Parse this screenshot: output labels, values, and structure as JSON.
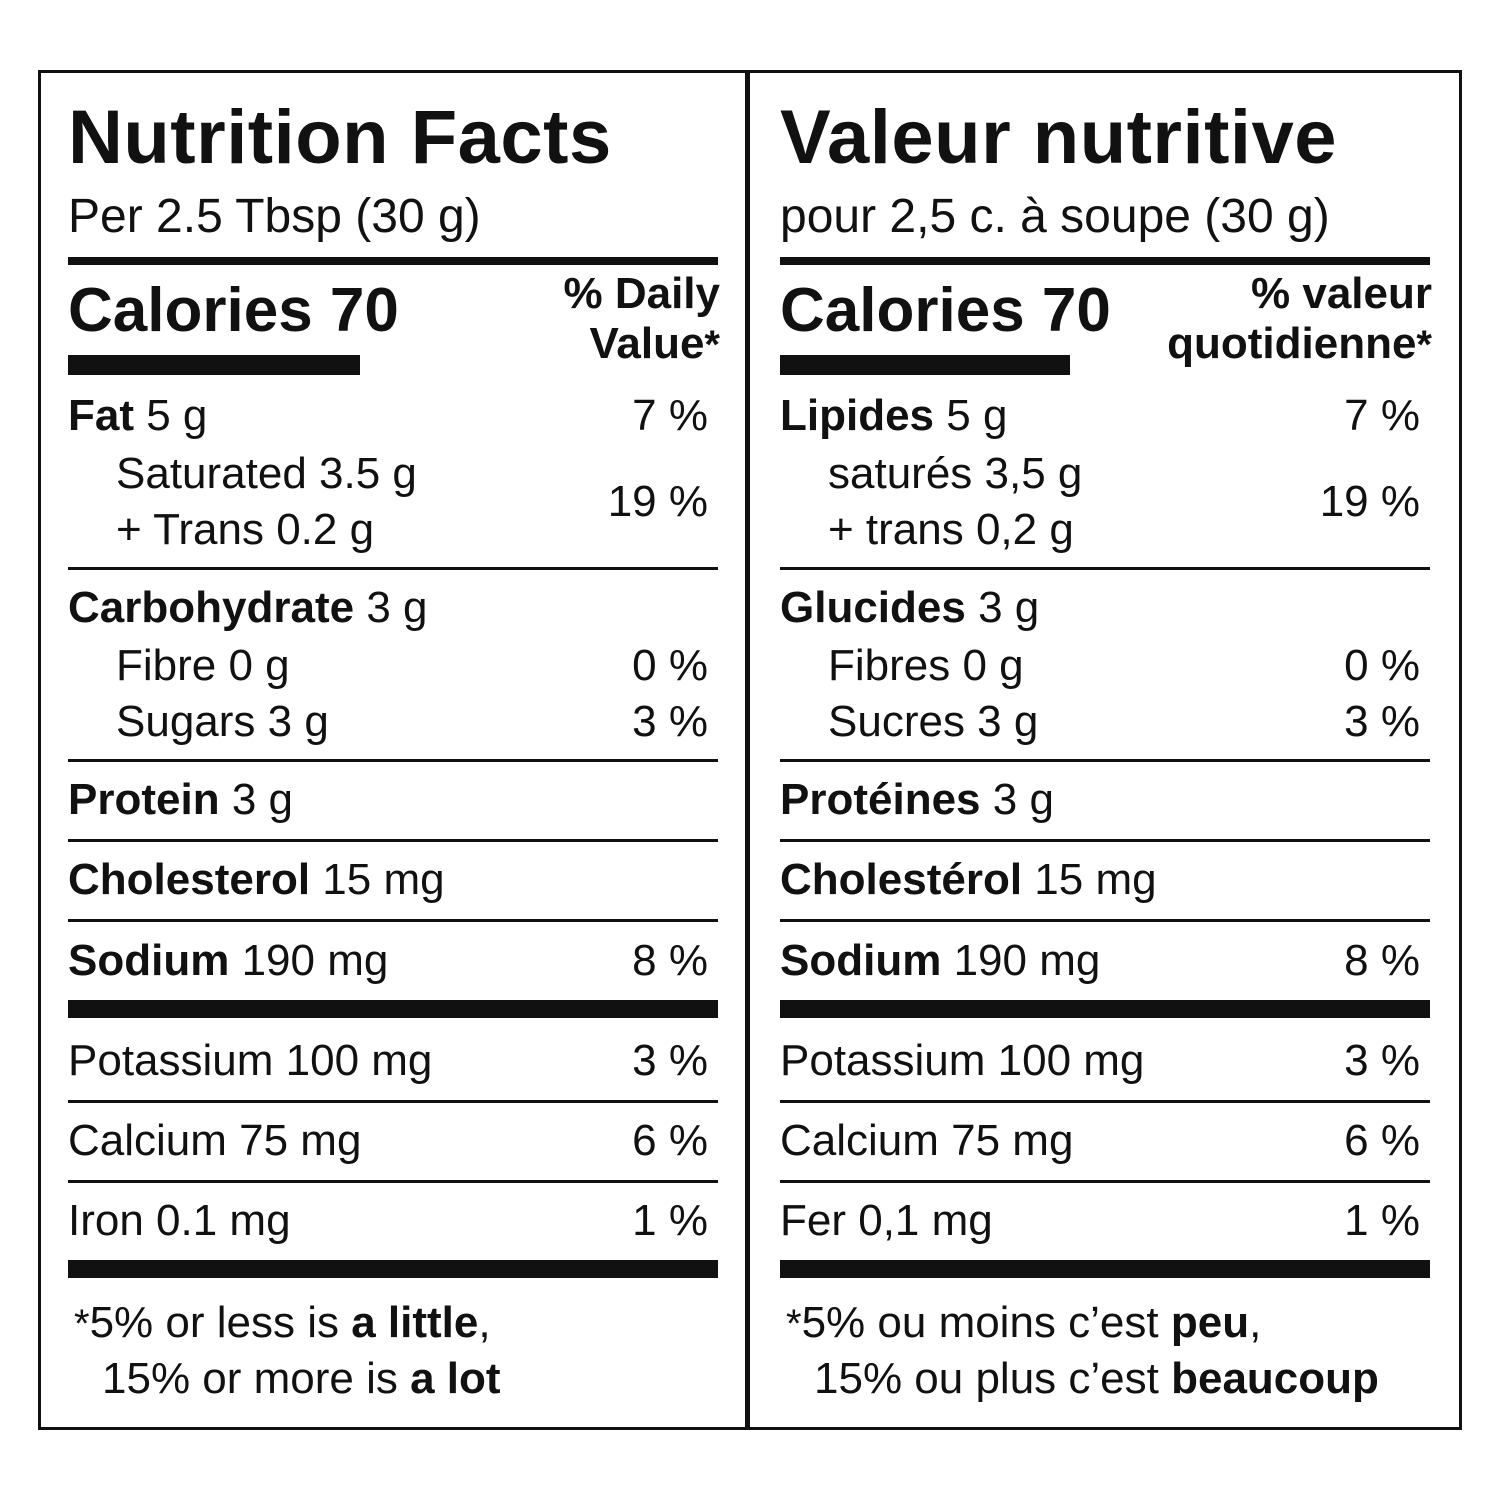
{
  "en": {
    "title": "Nutrition Facts",
    "serving": "Per 2.5 Tbsp (30 g)",
    "calories": "Calories 70",
    "dv_line1": "% Daily",
    "dv_line2": "Value",
    "asterisk": "*",
    "fat": {
      "label": "Fat",
      "amount": "5 g",
      "dv": "7 %"
    },
    "saturated": "Saturated 3.5 g",
    "trans": "+ Trans 0.2 g",
    "sat_trans_dv": "19 %",
    "carbohydrate": {
      "label": "Carbohydrate",
      "amount": "3 g"
    },
    "fibre": {
      "text": "Fibre 0 g",
      "dv": "0 %"
    },
    "sugars": {
      "text": "Sugars 3 g",
      "dv": "3 %"
    },
    "protein": {
      "label": "Protein",
      "amount": "3 g"
    },
    "cholesterol": {
      "label": "Cholesterol",
      "amount": "15 mg"
    },
    "sodium": {
      "label": "Sodium",
      "amount": "190 mg",
      "dv": "8 %"
    },
    "potassium": {
      "text": "Potassium 100 mg",
      "dv": "3 %"
    },
    "calcium": {
      "text": "Calcium 75 mg",
      "dv": "6 %"
    },
    "iron": {
      "text": "Iron 0.1 mg",
      "dv": "1 %"
    },
    "footnote1_pre": "5% or less is ",
    "footnote1_bold": "a little",
    "footnote1_post": ",",
    "footnote2_pre": "15% or more is ",
    "footnote2_bold": "a lot"
  },
  "fr": {
    "title": "Valeur nutritive",
    "serving": "pour 2,5 c. à soupe (30 g)",
    "calories": "Calories 70",
    "dv_line1": "% valeur",
    "dv_line2": "quotidienne",
    "asterisk": "*",
    "fat": {
      "label": "Lipides",
      "amount": "5 g",
      "dv": "7 %"
    },
    "saturated": "saturés 3,5 g",
    "trans": "+ trans 0,2 g",
    "sat_trans_dv": "19 %",
    "carbohydrate": {
      "label": "Glucides",
      "amount": "3 g"
    },
    "fibre": {
      "text": "Fibres 0 g",
      "dv": "0 %"
    },
    "sugars": {
      "text": "Sucres 3 g",
      "dv": "3 %"
    },
    "protein": {
      "label": "Protéines",
      "amount": "3 g"
    },
    "cholesterol": {
      "label": "Cholestérol",
      "amount": "15 mg"
    },
    "sodium": {
      "label": "Sodium",
      "amount": "190 mg",
      "dv": "8 %"
    },
    "potassium": {
      "text": "Potassium 100 mg",
      "dv": "3 %"
    },
    "calcium": {
      "text": "Calcium 75 mg",
      "dv": "6 %"
    },
    "iron": {
      "text": "Fer 0,1 mg",
      "dv": "1 %"
    },
    "footnote1_pre": "5% ou moins c’est ",
    "footnote1_bold": "peu",
    "footnote1_post": ",",
    "footnote2_pre": "15% ou plus c’est ",
    "footnote2_bold": "beaucoup"
  }
}
